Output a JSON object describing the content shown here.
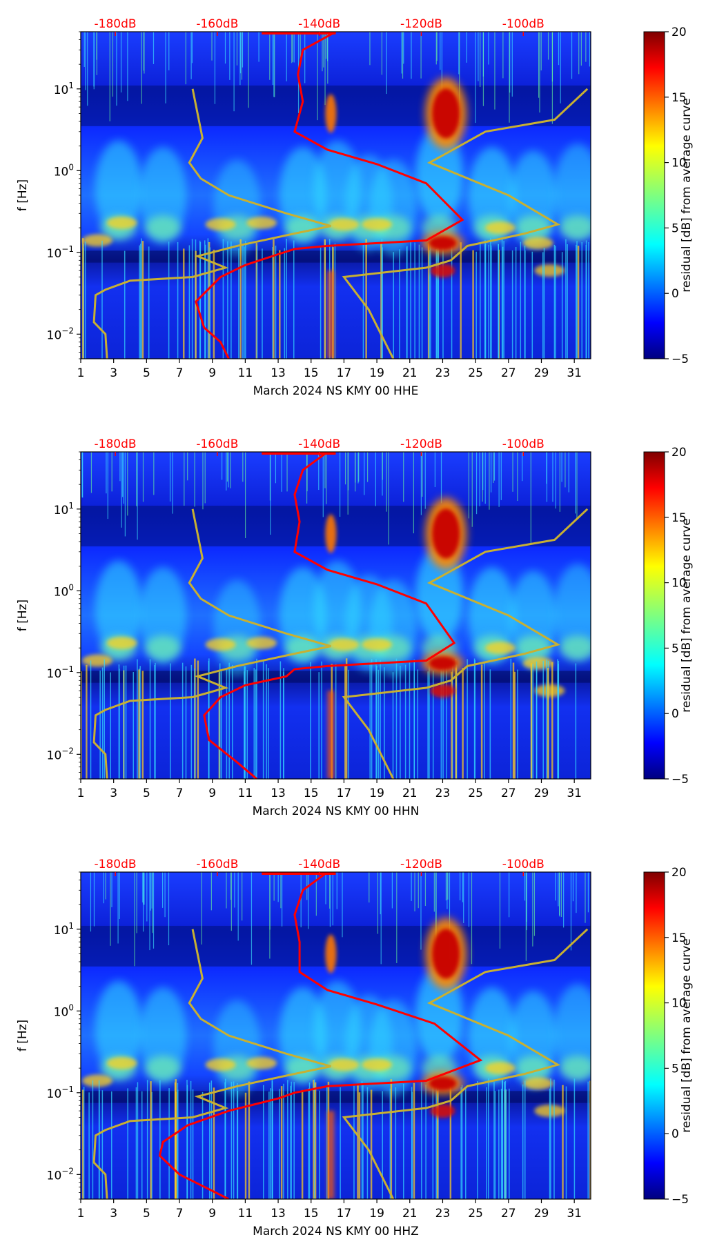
{
  "chart_data": [
    {
      "type": "heatmap",
      "subtype": "spectrogram",
      "xlabel": "March 2024 NS KMY 00 HHE",
      "ylabel": "f [Hz]",
      "x_ticks": [
        "1",
        "3",
        "5",
        "7",
        "9",
        "11",
        "13",
        "15",
        "17",
        "19",
        "21",
        "23",
        "25",
        "27",
        "29",
        "31"
      ],
      "xlim": [
        1,
        32
      ],
      "y_ticks": [
        "10−2",
        "10−1",
        "100",
        "101"
      ],
      "ylim": [
        0.005,
        50
      ],
      "y_scale": "log",
      "db_ticks": [
        "-180dB",
        "-160dB",
        "-140dB",
        "-120dB",
        "-100dB"
      ],
      "colorbar": {
        "label": "residual [dB] from average curve",
        "ticks": [
          "−5",
          "0",
          "5",
          "10",
          "15",
          "20"
        ],
        "range": [
          -5,
          20
        ],
        "colormap": "jet"
      },
      "average_curve": {
        "color": "#ff0000",
        "points": [
          [
            16.5,
            50
          ],
          [
            14.5,
            30
          ],
          [
            14.2,
            15
          ],
          [
            14.5,
            7
          ],
          [
            14.0,
            3
          ],
          [
            16,
            1.8
          ],
          [
            19,
            1.2
          ],
          [
            22.0,
            0.7
          ],
          [
            24.2,
            0.25
          ],
          [
            22,
            0.14
          ],
          [
            16,
            0.12
          ],
          [
            14,
            0.11
          ],
          [
            13,
            0.095
          ],
          [
            11,
            0.07
          ],
          [
            9.5,
            0.05
          ],
          [
            8,
            0.025
          ],
          [
            8.5,
            0.012
          ],
          [
            9.5,
            0.008
          ],
          [
            10,
            0.005
          ]
        ]
      },
      "noise_model_curve": {
        "color": "#c8b032",
        "points_left": [
          [
            7.8,
            10
          ],
          [
            8.4,
            2.5
          ],
          [
            7.6,
            1.25
          ],
          [
            8.3,
            0.8
          ],
          [
            10,
            0.5
          ],
          [
            13.5,
            0.3
          ],
          [
            16.2,
            0.21
          ],
          [
            14,
            0.17
          ],
          [
            10.5,
            0.12
          ],
          [
            8.1,
            0.09
          ],
          [
            9.8,
            0.065
          ],
          [
            7.8,
            0.05
          ],
          [
            4,
            0.045
          ],
          [
            2.5,
            0.035
          ],
          [
            1.9,
            0.03
          ],
          [
            1.8,
            0.014
          ],
          [
            2.5,
            0.01
          ],
          [
            2.6,
            0.005
          ]
        ],
        "points_right": [
          [
            31.8,
            10
          ],
          [
            29.8,
            4.2
          ],
          [
            25.6,
            3
          ],
          [
            22.2,
            1.25
          ],
          [
            27,
            0.5
          ],
          [
            30,
            0.22
          ],
          [
            28,
            0.17
          ],
          [
            24.5,
            0.12
          ],
          [
            23.5,
            0.08
          ],
          [
            22,
            0.065
          ],
          [
            17,
            0.05
          ],
          [
            18.5,
            0.02
          ],
          [
            20,
            0.005
          ]
        ]
      },
      "bright_spots": [
        {
          "x": 23.2,
          "f": 5,
          "label": "strong high-frequency residual"
        },
        {
          "x": 23.0,
          "f": 0.13,
          "label": "strong microseism residual"
        }
      ]
    },
    {
      "type": "heatmap",
      "subtype": "spectrogram",
      "xlabel": "March 2024 NS KMY 00 HHN",
      "ylabel": "f [Hz]",
      "x_ticks": [
        "1",
        "3",
        "5",
        "7",
        "9",
        "11",
        "13",
        "15",
        "17",
        "19",
        "21",
        "23",
        "25",
        "27",
        "29",
        "31"
      ],
      "xlim": [
        1,
        32
      ],
      "y_ticks": [
        "10−2",
        "10−1",
        "100",
        "101"
      ],
      "ylim": [
        0.005,
        50
      ],
      "y_scale": "log",
      "db_ticks": [
        "-180dB",
        "-160dB",
        "-140dB",
        "-120dB",
        "-100dB"
      ],
      "colorbar": {
        "label": "residual [dB] from average curve",
        "ticks": [
          "−5",
          "0",
          "5",
          "10",
          "15",
          "20"
        ],
        "range": [
          -5,
          20
        ],
        "colormap": "jet"
      },
      "average_curve": {
        "color": "#ff0000",
        "points": [
          [
            16,
            50
          ],
          [
            14.5,
            30
          ],
          [
            14.0,
            15
          ],
          [
            14.3,
            7
          ],
          [
            14.0,
            3
          ],
          [
            16,
            1.8
          ],
          [
            19,
            1.2
          ],
          [
            22.0,
            0.7
          ],
          [
            23.7,
            0.23
          ],
          [
            22,
            0.14
          ],
          [
            16,
            0.12
          ],
          [
            14,
            0.11
          ],
          [
            13.5,
            0.09
          ],
          [
            11,
            0.07
          ],
          [
            9.5,
            0.05
          ],
          [
            8.5,
            0.03
          ],
          [
            8.8,
            0.015
          ],
          [
            10.5,
            0.008
          ],
          [
            11.7,
            0.005
          ]
        ]
      },
      "noise_model_curve": {
        "color": "#c8b032",
        "points_left": [
          [
            7.8,
            10
          ],
          [
            8.4,
            2.5
          ],
          [
            7.6,
            1.25
          ],
          [
            8.3,
            0.8
          ],
          [
            10,
            0.5
          ],
          [
            13.5,
            0.3
          ],
          [
            16.2,
            0.21
          ],
          [
            14,
            0.17
          ],
          [
            10.5,
            0.12
          ],
          [
            8.1,
            0.09
          ],
          [
            9.8,
            0.065
          ],
          [
            7.8,
            0.05
          ],
          [
            4,
            0.045
          ],
          [
            2.5,
            0.035
          ],
          [
            1.9,
            0.03
          ],
          [
            1.8,
            0.014
          ],
          [
            2.5,
            0.01
          ],
          [
            2.6,
            0.005
          ]
        ],
        "points_right": [
          [
            31.8,
            10
          ],
          [
            29.8,
            4.2
          ],
          [
            25.6,
            3
          ],
          [
            22.2,
            1.25
          ],
          [
            27,
            0.5
          ],
          [
            30,
            0.22
          ],
          [
            28,
            0.17
          ],
          [
            24.5,
            0.12
          ],
          [
            23.5,
            0.08
          ],
          [
            22,
            0.065
          ],
          [
            17,
            0.05
          ],
          [
            18.5,
            0.02
          ],
          [
            20,
            0.005
          ]
        ]
      },
      "bright_spots": [
        {
          "x": 23.2,
          "f": 5,
          "label": "strong high-frequency residual"
        },
        {
          "x": 23.0,
          "f": 0.13,
          "label": "strong microseism residual"
        }
      ]
    },
    {
      "type": "heatmap",
      "subtype": "spectrogram",
      "xlabel": "March 2024 NS KMY 00 HHZ",
      "ylabel": "f [Hz]",
      "x_ticks": [
        "1",
        "3",
        "5",
        "7",
        "9",
        "11",
        "13",
        "15",
        "17",
        "19",
        "21",
        "23",
        "25",
        "27",
        "29",
        "31"
      ],
      "xlim": [
        1,
        32
      ],
      "y_ticks": [
        "10−2",
        "10−1",
        "100",
        "101"
      ],
      "ylim": [
        0.005,
        50
      ],
      "y_scale": "log",
      "db_ticks": [
        "-180dB",
        "-160dB",
        "-140dB",
        "-120dB",
        "-100dB"
      ],
      "colorbar": {
        "label": "residual [dB] from average curve",
        "ticks": [
          "−5",
          "0",
          "5",
          "10",
          "15",
          "20"
        ],
        "range": [
          -5,
          20
        ],
        "colormap": "jet"
      },
      "average_curve": {
        "color": "#ff0000",
        "points": [
          [
            16,
            50
          ],
          [
            14.5,
            30
          ],
          [
            14.0,
            15
          ],
          [
            14.3,
            7
          ],
          [
            14.3,
            3
          ],
          [
            16,
            1.8
          ],
          [
            19,
            1.2
          ],
          [
            22.5,
            0.7
          ],
          [
            25.3,
            0.25
          ],
          [
            22,
            0.14
          ],
          [
            16,
            0.12
          ],
          [
            14,
            0.1
          ],
          [
            13,
            0.085
          ],
          [
            10,
            0.06
          ],
          [
            7.5,
            0.04
          ],
          [
            6,
            0.025
          ],
          [
            5.8,
            0.017
          ],
          [
            7,
            0.01
          ],
          [
            10,
            0.005
          ]
        ]
      },
      "noise_model_curve": {
        "color": "#c8b032",
        "points_left": [
          [
            7.8,
            10
          ],
          [
            8.4,
            2.5
          ],
          [
            7.6,
            1.25
          ],
          [
            8.3,
            0.8
          ],
          [
            10,
            0.5
          ],
          [
            13.5,
            0.3
          ],
          [
            16.2,
            0.21
          ],
          [
            14,
            0.17
          ],
          [
            10.5,
            0.12
          ],
          [
            8.1,
            0.09
          ],
          [
            9.8,
            0.065
          ],
          [
            7.8,
            0.05
          ],
          [
            4,
            0.045
          ],
          [
            2.5,
            0.035
          ],
          [
            1.9,
            0.03
          ],
          [
            1.8,
            0.014
          ],
          [
            2.5,
            0.01
          ],
          [
            2.6,
            0.005
          ]
        ],
        "points_right": [
          [
            31.8,
            10
          ],
          [
            29.8,
            4.2
          ],
          [
            25.6,
            3
          ],
          [
            22.2,
            1.25
          ],
          [
            27,
            0.5
          ],
          [
            30,
            0.22
          ],
          [
            28,
            0.17
          ],
          [
            24.5,
            0.12
          ],
          [
            23.5,
            0.08
          ],
          [
            22,
            0.065
          ],
          [
            17,
            0.05
          ],
          [
            18.5,
            0.02
          ],
          [
            20,
            0.005
          ]
        ]
      },
      "bright_spots": [
        {
          "x": 23.2,
          "f": 5,
          "label": "strong high-frequency residual"
        },
        {
          "x": 23.0,
          "f": 0.13,
          "label": "strong microseism residual"
        }
      ]
    }
  ]
}
